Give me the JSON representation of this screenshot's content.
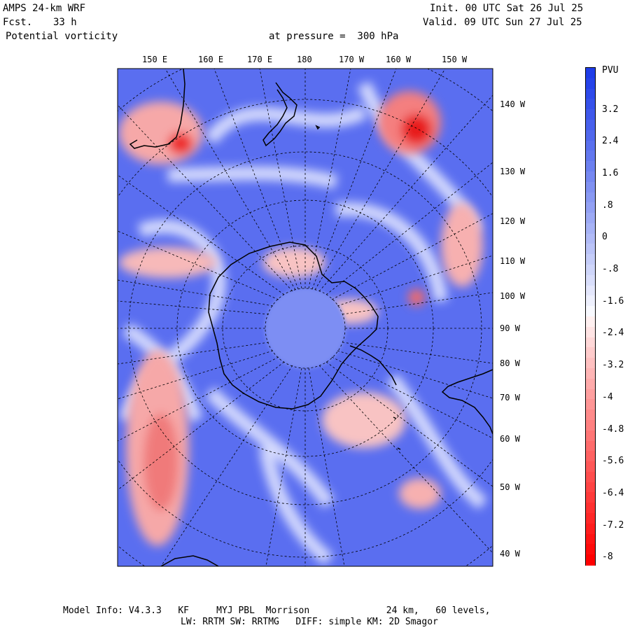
{
  "header": {
    "model": "AMPS 24-km WRF",
    "fcst_label": "Fcst.",
    "fcst_value": "33 h",
    "field": "Potential vorticity",
    "level": "at pressure =  300 hPa",
    "init": "Init. 00 UTC Sat 26 Jul 25",
    "valid": "Valid. 09 UTC Sun 27 Jul 25"
  },
  "top_ticks": [
    "150 E",
    "160 E",
    "170 E",
    "180",
    "170 W",
    "160 W",
    "150 W"
  ],
  "right_ticks": [
    "140 W",
    "130 W",
    "120 W",
    "110 W",
    "100 W",
    "90 W",
    "80 W",
    "70 W",
    "60 W",
    "50 W",
    "40 W"
  ],
  "colorbar": {
    "unit": "PVU",
    "labels": [
      "3.2",
      "2.4",
      "1.6",
      ".8",
      "0",
      "-.8",
      "-1.6",
      "-2.4",
      "-3.2",
      "-4",
      "-4.8",
      "-5.6",
      "-6.4",
      "-7.2",
      "-8"
    ],
    "range": [
      -8,
      4
    ],
    "colors": {
      "max_blue": "#1f3de8",
      "mid_white": "#ffffff",
      "max_red": "#ff0000"
    }
  },
  "footer": {
    "line1": "Model Info: V4.3.3   KF     MYJ PBL  Morrison              24 km,   60 levels,",
    "line2": "LW: RRTM SW: RRTMG   DIFF: simple KM: 2D Smagor"
  }
}
